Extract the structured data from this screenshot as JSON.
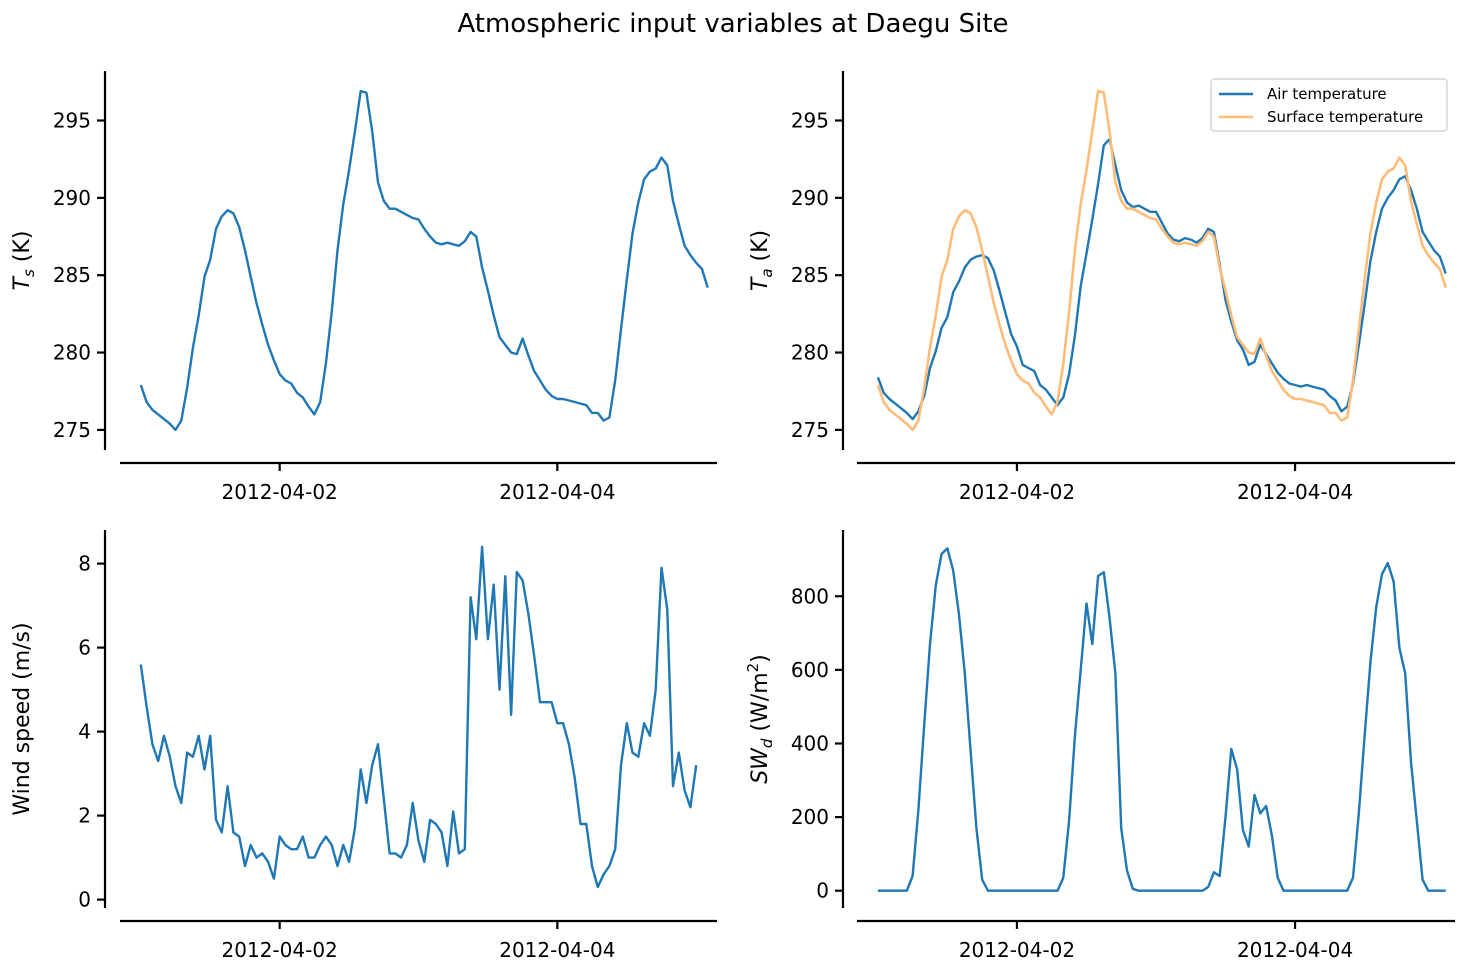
{
  "figure": {
    "title": "Atmospheric input variables at Daegu Site"
  },
  "colors": {
    "blue": "#1f77b4",
    "orange": "#ffbb78"
  },
  "chart_data": [
    {
      "type": "line",
      "title": "",
      "xlabel": "",
      "ylabel_main": "T",
      "ylabel_sub": "s",
      "ylabel_sup": "",
      "ylabel_unit": " (K)",
      "x_start": "2012-04-01 00:00",
      "x_step_hours": 1,
      "xlim": [
        "2012-03-31 20:24",
        "2012-04-05 03:36"
      ],
      "xticks": [
        "2012-04-02",
        "2012-04-04"
      ],
      "ylim": [
        273.7,
        298.2
      ],
      "yticks": [
        275,
        280,
        285,
        290,
        295
      ],
      "grid": false,
      "legend": null,
      "series": [
        {
          "color": "#1f77b4",
          "values": [
            277.9,
            276.8,
            276.3,
            276.0,
            275.7,
            275.4,
            275.0,
            275.6,
            277.7,
            280.3,
            282.4,
            284.9,
            286.0,
            288.0,
            288.8,
            289.2,
            289.0,
            288.1,
            286.6,
            284.9,
            283.2,
            281.8,
            280.5,
            279.5,
            278.6,
            278.2,
            278.0,
            277.4,
            277.1,
            276.5,
            276.0,
            276.8,
            279.3,
            282.6,
            286.6,
            289.6,
            291.8,
            294.3,
            296.9,
            296.8,
            294.3,
            291.0,
            289.8,
            289.3,
            289.3,
            289.1,
            288.9,
            288.7,
            288.6,
            288.0,
            287.5,
            287.1,
            287.0,
            287.1,
            287.0,
            286.9,
            287.2,
            287.8,
            287.5,
            285.5,
            284.0,
            282.4,
            281.0,
            280.5,
            280.0,
            279.9,
            280.9,
            279.8,
            278.8,
            278.2,
            277.6,
            277.2,
            277.0,
            277.0,
            276.9,
            276.8,
            276.7,
            276.6,
            276.1,
            276.1,
            275.6,
            275.8,
            278.2,
            281.5,
            284.7,
            287.7,
            289.7,
            291.2,
            291.7,
            291.9,
            292.6,
            292.1,
            289.8,
            288.3,
            286.9,
            286.3,
            285.8,
            285.4,
            284.2
          ]
        }
      ]
    },
    {
      "type": "line",
      "title": "",
      "xlabel": "",
      "ylabel_main": "T",
      "ylabel_sub": "a",
      "ylabel_sup": "",
      "ylabel_unit": " (K)",
      "x_start": "2012-04-01 00:00",
      "x_step_hours": 1,
      "xlim": [
        "2012-03-31 20:24",
        "2012-04-05 03:36"
      ],
      "xticks": [
        "2012-04-02",
        "2012-04-04"
      ],
      "ylim": [
        273.7,
        298.2
      ],
      "yticks": [
        275,
        280,
        285,
        290,
        295
      ],
      "grid": false,
      "legend": "top-right",
      "series": [
        {
          "name": "Air temperature",
          "color": "#1f77b4",
          "values": [
            278.4,
            277.4,
            277.0,
            276.7,
            276.4,
            276.1,
            275.7,
            276.2,
            277.2,
            279.0,
            280.1,
            281.6,
            282.3,
            283.9,
            284.6,
            285.5,
            286.0,
            286.2,
            286.3,
            286.1,
            285.3,
            284.0,
            282.6,
            281.2,
            280.4,
            279.2,
            279.0,
            278.8,
            277.9,
            277.6,
            277.1,
            276.6,
            277.1,
            278.6,
            281.1,
            284.3,
            286.4,
            288.6,
            290.9,
            293.4,
            293.8,
            292.1,
            290.5,
            289.7,
            289.4,
            289.5,
            289.3,
            289.1,
            289.1,
            288.4,
            287.7,
            287.3,
            287.2,
            287.4,
            287.3,
            287.1,
            287.4,
            288.0,
            287.8,
            285.7,
            283.4,
            282.0,
            280.8,
            280.2,
            279.2,
            279.4,
            280.5,
            279.9,
            279.3,
            278.7,
            278.3,
            278.0,
            277.9,
            277.8,
            277.9,
            277.8,
            277.7,
            277.6,
            277.2,
            276.9,
            276.2,
            276.5,
            278.0,
            280.5,
            283.1,
            285.9,
            287.8,
            289.3,
            290.0,
            290.5,
            291.2,
            291.4,
            290.5,
            289.3,
            287.8,
            287.2,
            286.6,
            286.2,
            285.1
          ]
        },
        {
          "name": "Surface temperature",
          "color": "#ffbb78",
          "values": [
            277.9,
            276.8,
            276.3,
            276.0,
            275.7,
            275.4,
            275.0,
            275.6,
            277.7,
            280.3,
            282.4,
            284.9,
            286.0,
            288.0,
            288.8,
            289.2,
            289.0,
            288.1,
            286.6,
            284.9,
            283.2,
            281.8,
            280.5,
            279.5,
            278.6,
            278.2,
            278.0,
            277.4,
            277.1,
            276.5,
            276.0,
            276.8,
            279.3,
            282.6,
            286.6,
            289.6,
            291.8,
            294.3,
            296.9,
            296.8,
            294.3,
            291.0,
            289.8,
            289.3,
            289.3,
            289.1,
            288.9,
            288.7,
            288.6,
            288.0,
            287.5,
            287.1,
            287.0,
            287.1,
            287.0,
            286.9,
            287.2,
            287.8,
            287.5,
            285.5,
            284.0,
            282.4,
            281.0,
            280.5,
            280.0,
            279.9,
            280.9,
            279.8,
            278.8,
            278.2,
            277.6,
            277.2,
            277.0,
            277.0,
            276.9,
            276.8,
            276.7,
            276.6,
            276.1,
            276.1,
            275.6,
            275.8,
            278.2,
            281.5,
            284.7,
            287.7,
            289.7,
            291.2,
            291.7,
            291.9,
            292.6,
            292.1,
            289.8,
            288.3,
            286.9,
            286.3,
            285.8,
            285.4,
            284.2
          ]
        }
      ]
    },
    {
      "type": "line",
      "title": "",
      "xlabel": "",
      "ylabel_main": "Wind speed (m/s)",
      "ylabel_sub": "",
      "ylabel_sup": "",
      "ylabel_unit": "",
      "x_start": "2012-04-01 00:00",
      "x_step_hours": 1,
      "xlim": [
        "2012-03-31 20:24",
        "2012-04-05 03:36"
      ],
      "xticks": [
        "2012-04-02",
        "2012-04-04"
      ],
      "ylim": [
        -0.2,
        8.8
      ],
      "yticks": [
        0,
        2,
        4,
        6,
        8
      ],
      "grid": false,
      "legend": null,
      "series": [
        {
          "color": "#1f77b4",
          "values": [
            5.6,
            4.6,
            3.7,
            3.3,
            3.9,
            3.4,
            2.7,
            2.3,
            3.5,
            3.4,
            3.9,
            3.1,
            3.9,
            1.9,
            1.6,
            2.7,
            1.6,
            1.5,
            0.8,
            1.3,
            1.0,
            1.1,
            0.9,
            0.5,
            1.5,
            1.3,
            1.2,
            1.2,
            1.5,
            1.0,
            1.0,
            1.3,
            1.5,
            1.3,
            0.8,
            1.3,
            0.9,
            1.7,
            3.1,
            2.3,
            3.2,
            3.7,
            2.4,
            1.1,
            1.1,
            1.0,
            1.3,
            2.3,
            1.4,
            0.9,
            1.9,
            1.8,
            1.6,
            0.8,
            2.1,
            1.1,
            1.2,
            7.2,
            6.2,
            8.4,
            6.2,
            7.5,
            5.0,
            7.7,
            4.4,
            7.8,
            7.6,
            6.8,
            5.8,
            4.7,
            4.7,
            4.7,
            4.2,
            4.2,
            3.7,
            2.9,
            1.8,
            1.8,
            0.8,
            0.3,
            0.6,
            0.8,
            1.2,
            3.2,
            4.2,
            3.5,
            3.4,
            4.2,
            3.9,
            5.0,
            7.9,
            6.9,
            2.7,
            3.5,
            2.6,
            2.2,
            3.2
          ]
        }
      ]
    },
    {
      "type": "line",
      "title": "",
      "xlabel": "",
      "ylabel_main": "SW",
      "ylabel_sub": "d",
      "ylabel_sup": "2",
      "ylabel_unit": " (W/m",
      "ylabel_close": ")",
      "x_start": "2012-04-01 00:00",
      "x_step_hours": 1,
      "xlim": [
        "2012-03-31 20:24",
        "2012-04-05 03:36"
      ],
      "xticks": [
        "2012-04-02",
        "2012-04-04"
      ],
      "ylim": [
        -47,
        980
      ],
      "yticks": [
        0,
        200,
        400,
        600,
        800
      ],
      "grid": false,
      "legend": null,
      "series": [
        {
          "color": "#1f77b4",
          "values": [
            0,
            0,
            0,
            0,
            0,
            0,
            40,
            220,
            450,
            670,
            830,
            915,
            930,
            870,
            750,
            590,
            380,
            170,
            30,
            0,
            0,
            0,
            0,
            0,
            0,
            0,
            0,
            0,
            0,
            0,
            0,
            0,
            35,
            190,
            420,
            600,
            780,
            670,
            855,
            865,
            740,
            590,
            170,
            55,
            5,
            0,
            0,
            0,
            0,
            0,
            0,
            0,
            0,
            0,
            0,
            0,
            0,
            10,
            50,
            40,
            200,
            385,
            330,
            165,
            120,
            260,
            210,
            230,
            150,
            35,
            0,
            0,
            0,
            0,
            0,
            0,
            0,
            0,
            0,
            0,
            0,
            0,
            35,
            210,
            420,
            620,
            770,
            860,
            890,
            840,
            660,
            590,
            350,
            190,
            30,
            0,
            0,
            0,
            0
          ]
        }
      ]
    }
  ]
}
